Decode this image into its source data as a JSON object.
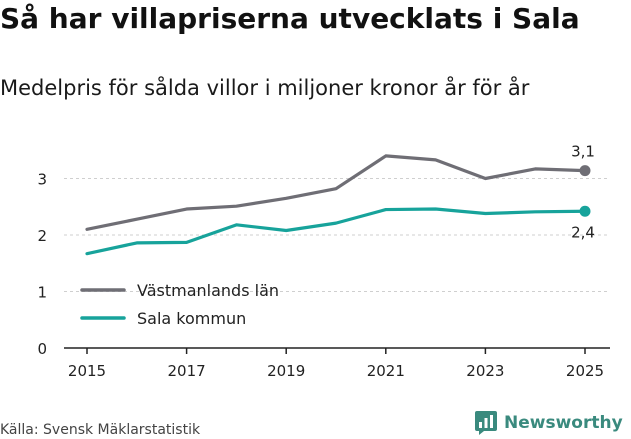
{
  "title": "Så har villapriserna utvecklats i Sala",
  "subtitle": "Medelpris för sålda villor i miljoner kronor år för år",
  "source": "Källa: Svensk Mäklarstatistik",
  "brand": "Newsworthy",
  "colors": {
    "lan": "#6f6e75",
    "kommun": "#17a39b",
    "brand": "#3a8a7e",
    "grid": "#cfcfcf"
  },
  "chart_data": {
    "type": "line",
    "title": "Så har villapriserna utvecklats i Sala",
    "subtitle": "Medelpris för sålda villor i miljoner kronor år för år",
    "xlabel": "",
    "ylabel": "",
    "x": [
      2015,
      2016,
      2017,
      2018,
      2019,
      2020,
      2021,
      2022,
      2023,
      2024,
      2025
    ],
    "xticks": [
      "2015",
      "2017",
      "2019",
      "2021",
      "2023",
      "2025"
    ],
    "yticks": [
      "0",
      "1",
      "2",
      "3"
    ],
    "ylim": [
      0,
      3.5
    ],
    "series": [
      {
        "name": "Västmanlands län",
        "color": "#6f6e75",
        "values": [
          2.1,
          2.28,
          2.46,
          2.51,
          2.65,
          2.82,
          3.4,
          3.33,
          3.0,
          3.17,
          3.14
        ],
        "end_label": "3,1"
      },
      {
        "name": "Sala kommun",
        "color": "#17a39b",
        "values": [
          1.67,
          1.86,
          1.87,
          2.18,
          2.08,
          2.21,
          2.45,
          2.46,
          2.38,
          2.41,
          2.42
        ],
        "end_label": "2,4"
      }
    ],
    "legend_position": "bottom-left",
    "grid": true
  }
}
